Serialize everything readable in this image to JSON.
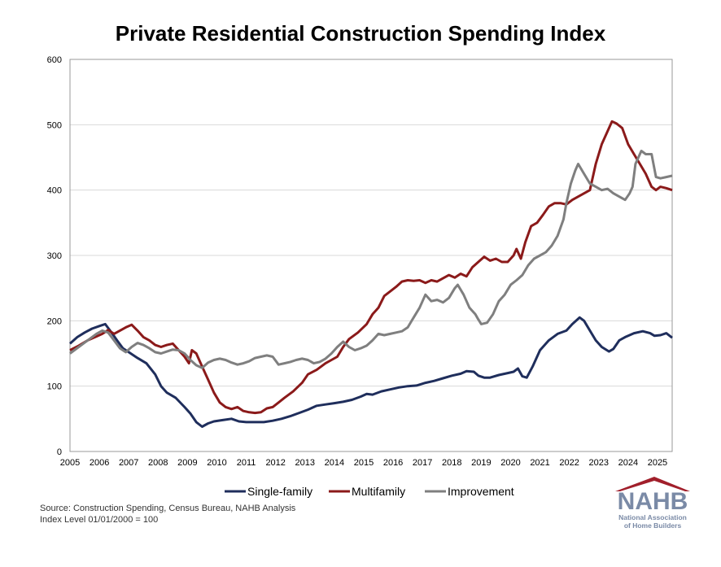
{
  "chart_data": {
    "type": "line",
    "title": "Private Residential Construction Spending Index",
    "xlabel": "",
    "ylabel": "",
    "ylim": [
      0,
      600
    ],
    "yticks": [
      0,
      100,
      200,
      300,
      400,
      500,
      600
    ],
    "xlim": [
      2005,
      2025.5
    ],
    "xticks": [
      "2005",
      "2006",
      "2007",
      "2008",
      "2009",
      "2010",
      "2011",
      "2012",
      "2013",
      "2014",
      "2015",
      "2016",
      "2017",
      "2018",
      "2019",
      "2020",
      "2021",
      "2022",
      "2023",
      "2024",
      "2025"
    ],
    "grid": "horizontal",
    "legend_position": "bottom",
    "series": [
      {
        "name": "Single-family",
        "color": "#1f2e5c",
        "points": [
          [
            2005.0,
            165
          ],
          [
            2005.25,
            175
          ],
          [
            2005.5,
            182
          ],
          [
            2005.75,
            188
          ],
          [
            2006.0,
            192
          ],
          [
            2006.2,
            195
          ],
          [
            2006.4,
            183
          ],
          [
            2006.6,
            170
          ],
          [
            2006.8,
            158
          ],
          [
            2007.0,
            152
          ],
          [
            2007.3,
            143
          ],
          [
            2007.6,
            135
          ],
          [
            2007.9,
            118
          ],
          [
            2008.1,
            100
          ],
          [
            2008.3,
            90
          ],
          [
            2008.6,
            82
          ],
          [
            2008.9,
            68
          ],
          [
            2009.1,
            58
          ],
          [
            2009.3,
            45
          ],
          [
            2009.5,
            38
          ],
          [
            2009.7,
            43
          ],
          [
            2009.9,
            46
          ],
          [
            2010.2,
            48
          ],
          [
            2010.5,
            50
          ],
          [
            2010.75,
            46
          ],
          [
            2011.0,
            45
          ],
          [
            2011.3,
            45
          ],
          [
            2011.6,
            45
          ],
          [
            2011.9,
            47
          ],
          [
            2012.2,
            50
          ],
          [
            2012.5,
            54
          ],
          [
            2012.8,
            59
          ],
          [
            2013.1,
            64
          ],
          [
            2013.4,
            70
          ],
          [
            2013.7,
            72
          ],
          [
            2014.0,
            74
          ],
          [
            2014.3,
            76
          ],
          [
            2014.6,
            79
          ],
          [
            2014.9,
            84
          ],
          [
            2015.1,
            88
          ],
          [
            2015.3,
            87
          ],
          [
            2015.6,
            92
          ],
          [
            2015.9,
            95
          ],
          [
            2016.2,
            98
          ],
          [
            2016.5,
            100
          ],
          [
            2016.8,
            101
          ],
          [
            2017.1,
            105
          ],
          [
            2017.4,
            108
          ],
          [
            2017.7,
            112
          ],
          [
            2018.0,
            116
          ],
          [
            2018.3,
            119
          ],
          [
            2018.5,
            123
          ],
          [
            2018.75,
            122
          ],
          [
            2018.9,
            116
          ],
          [
            2019.1,
            113
          ],
          [
            2019.3,
            113
          ],
          [
            2019.6,
            117
          ],
          [
            2019.9,
            120
          ],
          [
            2020.1,
            122
          ],
          [
            2020.25,
            127
          ],
          [
            2020.4,
            115
          ],
          [
            2020.55,
            113
          ],
          [
            2020.75,
            130
          ],
          [
            2021.0,
            155
          ],
          [
            2021.3,
            170
          ],
          [
            2021.6,
            180
          ],
          [
            2021.9,
            185
          ],
          [
            2022.1,
            195
          ],
          [
            2022.35,
            205
          ],
          [
            2022.5,
            200
          ],
          [
            2022.7,
            185
          ],
          [
            2022.9,
            170
          ],
          [
            2023.1,
            160
          ],
          [
            2023.35,
            153
          ],
          [
            2023.5,
            157
          ],
          [
            2023.7,
            170
          ],
          [
            2023.9,
            175
          ],
          [
            2024.2,
            181
          ],
          [
            2024.5,
            184
          ],
          [
            2024.75,
            181
          ],
          [
            2024.9,
            177
          ],
          [
            2025.1,
            178
          ],
          [
            2025.3,
            181
          ],
          [
            2025.5,
            174
          ]
        ]
      },
      {
        "name": "Multifamily",
        "color": "#8b1a1a",
        "points": [
          [
            2005.0,
            155
          ],
          [
            2005.3,
            162
          ],
          [
            2005.6,
            170
          ],
          [
            2005.9,
            176
          ],
          [
            2006.1,
            180
          ],
          [
            2006.3,
            186
          ],
          [
            2006.5,
            180
          ],
          [
            2006.7,
            185
          ],
          [
            2006.9,
            190
          ],
          [
            2007.1,
            194
          ],
          [
            2007.3,
            185
          ],
          [
            2007.5,
            175
          ],
          [
            2007.7,
            170
          ],
          [
            2007.9,
            163
          ],
          [
            2008.1,
            160
          ],
          [
            2008.3,
            163
          ],
          [
            2008.5,
            165
          ],
          [
            2008.7,
            155
          ],
          [
            2008.9,
            145
          ],
          [
            2009.05,
            135
          ],
          [
            2009.15,
            155
          ],
          [
            2009.3,
            150
          ],
          [
            2009.5,
            130
          ],
          [
            2009.7,
            110
          ],
          [
            2009.9,
            90
          ],
          [
            2010.1,
            75
          ],
          [
            2010.3,
            68
          ],
          [
            2010.5,
            65
          ],
          [
            2010.7,
            68
          ],
          [
            2010.9,
            62
          ],
          [
            2011.1,
            60
          ],
          [
            2011.3,
            59
          ],
          [
            2011.5,
            60
          ],
          [
            2011.7,
            66
          ],
          [
            2011.9,
            68
          ],
          [
            2012.1,
            75
          ],
          [
            2012.3,
            82
          ],
          [
            2012.6,
            92
          ],
          [
            2012.9,
            105
          ],
          [
            2013.1,
            118
          ],
          [
            2013.4,
            125
          ],
          [
            2013.7,
            135
          ],
          [
            2013.9,
            140
          ],
          [
            2014.1,
            145
          ],
          [
            2014.3,
            160
          ],
          [
            2014.5,
            172
          ],
          [
            2014.8,
            182
          ],
          [
            2015.1,
            195
          ],
          [
            2015.3,
            210
          ],
          [
            2015.5,
            220
          ],
          [
            2015.7,
            238
          ],
          [
            2015.9,
            245
          ],
          [
            2016.1,
            252
          ],
          [
            2016.3,
            260
          ],
          [
            2016.5,
            262
          ],
          [
            2016.7,
            261
          ],
          [
            2016.9,
            262
          ],
          [
            2017.1,
            258
          ],
          [
            2017.3,
            262
          ],
          [
            2017.5,
            260
          ],
          [
            2017.7,
            265
          ],
          [
            2017.9,
            270
          ],
          [
            2018.1,
            266
          ],
          [
            2018.3,
            272
          ],
          [
            2018.5,
            268
          ],
          [
            2018.7,
            282
          ],
          [
            2018.9,
            290
          ],
          [
            2019.1,
            298
          ],
          [
            2019.3,
            292
          ],
          [
            2019.5,
            295
          ],
          [
            2019.7,
            290
          ],
          [
            2019.9,
            290
          ],
          [
            2020.1,
            300
          ],
          [
            2020.2,
            310
          ],
          [
            2020.35,
            295
          ],
          [
            2020.5,
            320
          ],
          [
            2020.7,
            345
          ],
          [
            2020.9,
            350
          ],
          [
            2021.1,
            362
          ],
          [
            2021.3,
            375
          ],
          [
            2021.5,
            380
          ],
          [
            2021.7,
            380
          ],
          [
            2021.9,
            378
          ],
          [
            2022.1,
            385
          ],
          [
            2022.3,
            390
          ],
          [
            2022.5,
            395
          ],
          [
            2022.7,
            400
          ],
          [
            2022.9,
            440
          ],
          [
            2023.1,
            470
          ],
          [
            2023.3,
            490
          ],
          [
            2023.45,
            505
          ],
          [
            2023.6,
            502
          ],
          [
            2023.8,
            495
          ],
          [
            2024.0,
            470
          ],
          [
            2024.2,
            455
          ],
          [
            2024.4,
            440
          ],
          [
            2024.6,
            425
          ],
          [
            2024.8,
            405
          ],
          [
            2024.95,
            400
          ],
          [
            2025.1,
            405
          ],
          [
            2025.3,
            403
          ],
          [
            2025.5,
            400
          ]
        ]
      },
      {
        "name": "Improvement",
        "color": "#7f7f7f",
        "points": [
          [
            2005.0,
            150
          ],
          [
            2005.3,
            160
          ],
          [
            2005.6,
            170
          ],
          [
            2005.9,
            180
          ],
          [
            2006.1,
            185
          ],
          [
            2006.3,
            182
          ],
          [
            2006.5,
            170
          ],
          [
            2006.7,
            158
          ],
          [
            2006.9,
            152
          ],
          [
            2007.1,
            160
          ],
          [
            2007.3,
            166
          ],
          [
            2007.5,
            163
          ],
          [
            2007.7,
            158
          ],
          [
            2007.9,
            152
          ],
          [
            2008.1,
            150
          ],
          [
            2008.3,
            153
          ],
          [
            2008.5,
            156
          ],
          [
            2008.7,
            155
          ],
          [
            2008.9,
            150
          ],
          [
            2009.1,
            140
          ],
          [
            2009.3,
            132
          ],
          [
            2009.5,
            128
          ],
          [
            2009.7,
            136
          ],
          [
            2009.9,
            140
          ],
          [
            2010.1,
            142
          ],
          [
            2010.3,
            140
          ],
          [
            2010.5,
            136
          ],
          [
            2010.7,
            133
          ],
          [
            2010.9,
            135
          ],
          [
            2011.1,
            138
          ],
          [
            2011.3,
            143
          ],
          [
            2011.5,
            145
          ],
          [
            2011.7,
            147
          ],
          [
            2011.9,
            145
          ],
          [
            2012.1,
            133
          ],
          [
            2012.3,
            135
          ],
          [
            2012.5,
            137
          ],
          [
            2012.7,
            140
          ],
          [
            2012.9,
            142
          ],
          [
            2013.1,
            140
          ],
          [
            2013.3,
            135
          ],
          [
            2013.5,
            137
          ],
          [
            2013.7,
            142
          ],
          [
            2013.9,
            150
          ],
          [
            2014.1,
            160
          ],
          [
            2014.3,
            168
          ],
          [
            2014.5,
            160
          ],
          [
            2014.7,
            155
          ],
          [
            2014.9,
            158
          ],
          [
            2015.1,
            162
          ],
          [
            2015.3,
            170
          ],
          [
            2015.5,
            180
          ],
          [
            2015.7,
            178
          ],
          [
            2015.9,
            180
          ],
          [
            2016.1,
            182
          ],
          [
            2016.3,
            184
          ],
          [
            2016.5,
            190
          ],
          [
            2016.7,
            205
          ],
          [
            2016.9,
            220
          ],
          [
            2017.1,
            240
          ],
          [
            2017.3,
            230
          ],
          [
            2017.5,
            232
          ],
          [
            2017.7,
            228
          ],
          [
            2017.9,
            235
          ],
          [
            2018.1,
            250
          ],
          [
            2018.2,
            255
          ],
          [
            2018.4,
            240
          ],
          [
            2018.6,
            220
          ],
          [
            2018.8,
            210
          ],
          [
            2018.9,
            202
          ],
          [
            2019.0,
            195
          ],
          [
            2019.2,
            197
          ],
          [
            2019.4,
            210
          ],
          [
            2019.6,
            230
          ],
          [
            2019.8,
            240
          ],
          [
            2020.0,
            255
          ],
          [
            2020.2,
            262
          ],
          [
            2020.4,
            270
          ],
          [
            2020.6,
            285
          ],
          [
            2020.8,
            295
          ],
          [
            2021.0,
            300
          ],
          [
            2021.2,
            305
          ],
          [
            2021.4,
            315
          ],
          [
            2021.6,
            330
          ],
          [
            2021.8,
            355
          ],
          [
            2021.9,
            380
          ],
          [
            2022.05,
            410
          ],
          [
            2022.2,
            430
          ],
          [
            2022.3,
            440
          ],
          [
            2022.5,
            425
          ],
          [
            2022.7,
            410
          ],
          [
            2022.9,
            405
          ],
          [
            2023.1,
            400
          ],
          [
            2023.3,
            402
          ],
          [
            2023.5,
            395
          ],
          [
            2023.7,
            390
          ],
          [
            2023.9,
            385
          ],
          [
            2024.05,
            395
          ],
          [
            2024.15,
            405
          ],
          [
            2024.25,
            440
          ],
          [
            2024.45,
            460
          ],
          [
            2024.6,
            455
          ],
          [
            2024.8,
            455
          ],
          [
            2024.95,
            420
          ],
          [
            2025.1,
            418
          ],
          [
            2025.3,
            420
          ],
          [
            2025.5,
            422
          ]
        ]
      }
    ]
  },
  "source_lines": [
    "Source: Construction Spending, Census Bureau, NAHB Analysis",
    "Index Level 01/01/2000 = 100"
  ],
  "logo": {
    "acronym": "NAHB",
    "name_line1": "National Association",
    "name_line2": "of Home Builders",
    "colors": {
      "letters": "#7a8aa6",
      "roof": "#a11f2b"
    }
  }
}
